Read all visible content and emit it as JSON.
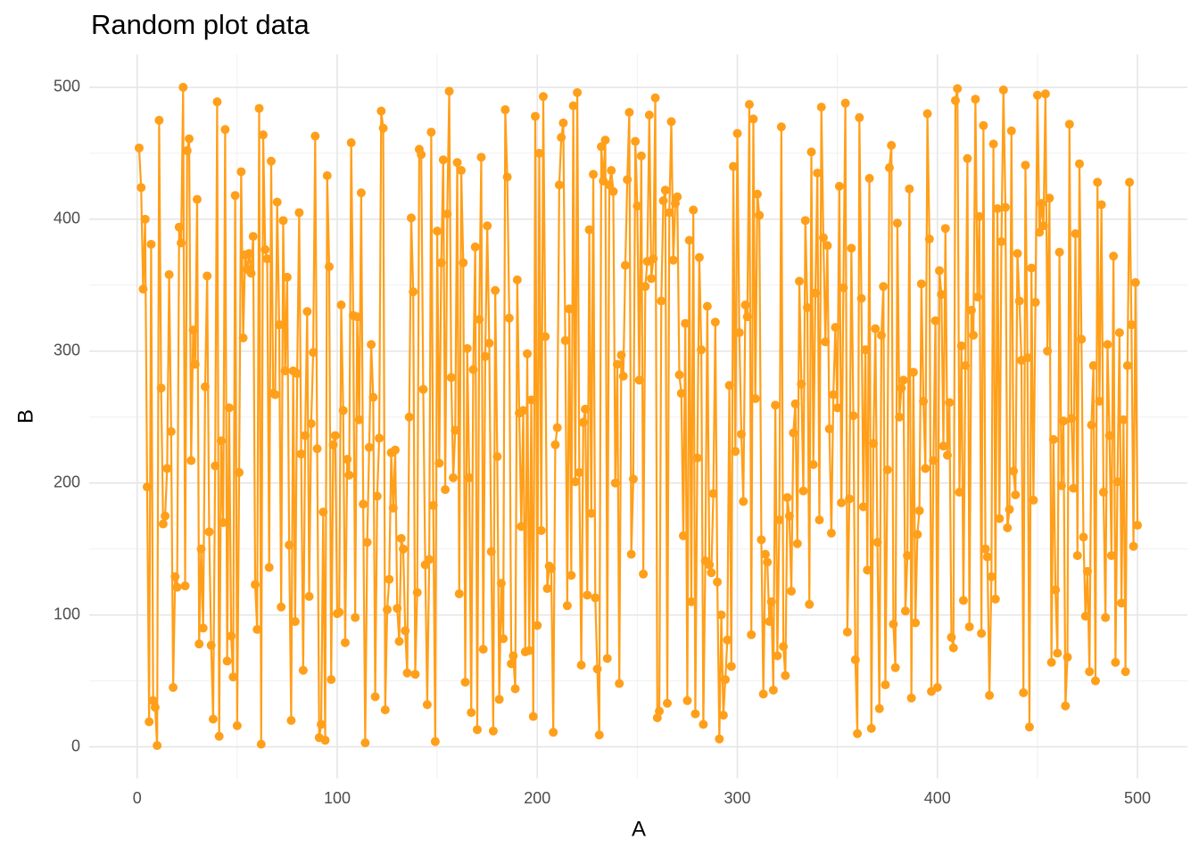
{
  "chart_data": {
    "type": "line",
    "title": "Random plot data",
    "x_label": "A",
    "y_label": "B",
    "color": "#ff9f1a",
    "grid": true,
    "xlim": [
      -23.95,
      524.95
    ],
    "ylim": [
      -23.95,
      524.95
    ],
    "xticks": [
      0,
      100,
      200,
      300,
      400,
      500
    ],
    "yticks": [
      0,
      100,
      200,
      300,
      400,
      500
    ],
    "xminorticks": [
      50,
      150,
      250,
      350,
      450
    ],
    "yminorticks": [
      50,
      150,
      250,
      350,
      450
    ],
    "x": [
      1,
      2,
      3,
      4,
      5,
      6,
      7,
      8,
      9,
      10,
      11,
      12,
      13,
      14,
      15,
      16,
      17,
      18,
      19,
      20,
      21,
      22,
      23,
      24,
      25,
      26,
      27,
      28,
      29,
      30,
      31,
      32,
      33,
      34,
      35,
      36,
      37,
      38,
      39,
      40,
      41,
      42,
      43,
      44,
      45,
      46,
      47,
      48,
      49,
      50,
      51,
      52,
      53,
      54,
      55,
      56,
      57,
      58,
      59,
      60,
      61,
      62,
      63,
      64,
      65,
      66,
      67,
      68,
      69,
      70,
      71,
      72,
      73,
      74,
      75,
      76,
      77,
      78,
      79,
      80,
      81,
      82,
      83,
      84,
      85,
      86,
      87,
      88,
      89,
      90,
      91,
      92,
      93,
      94,
      95,
      96,
      97,
      98,
      99,
      100,
      101,
      102,
      103,
      104,
      105,
      106,
      107,
      108,
      109,
      110,
      111,
      112,
      113,
      114,
      115,
      116,
      117,
      118,
      119,
      120,
      121,
      122,
      123,
      124,
      125,
      126,
      127,
      128,
      129,
      130,
      131,
      132,
      133,
      134,
      135,
      136,
      137,
      138,
      139,
      140,
      141,
      142,
      143,
      144,
      145,
      146,
      147,
      148,
      149,
      150,
      151,
      152,
      153,
      154,
      155,
      156,
      157,
      158,
      159,
      160,
      161,
      162,
      163,
      164,
      165,
      166,
      167,
      168,
      169,
      170,
      171,
      172,
      173,
      174,
      175,
      176,
      177,
      178,
      179,
      180,
      181,
      182,
      183,
      184,
      185,
      186,
      187,
      188,
      189,
      190,
      191,
      192,
      193,
      194,
      195,
      196,
      197,
      198,
      199,
      200,
      201,
      202,
      203,
      204,
      205,
      206,
      207,
      208,
      209,
      210,
      211,
      212,
      213,
      214,
      215,
      216,
      217,
      218,
      219,
      220,
      221,
      222,
      223,
      224,
      225,
      226,
      227,
      228,
      229,
      230,
      231,
      232,
      233,
      234,
      235,
      236,
      237,
      238,
      239,
      240,
      241,
      242,
      243,
      244,
      245,
      246,
      247,
      248,
      249,
      250,
      251,
      252,
      253,
      254,
      255,
      256,
      257,
      258,
      259,
      260,
      261,
      262,
      263,
      264,
      265,
      266,
      267,
      268,
      269,
      270,
      271,
      272,
      273,
      274,
      275,
      276,
      277,
      278,
      279,
      280,
      281,
      282,
      283,
      284,
      285,
      286,
      287,
      288,
      289,
      290,
      291,
      292,
      293,
      294,
      295,
      296,
      297,
      298,
      299,
      300,
      301,
      302,
      303,
      304,
      305,
      306,
      307,
      308,
      309,
      310,
      311,
      312,
      313,
      314,
      315,
      316,
      317,
      318,
      319,
      320,
      321,
      322,
      323,
      324,
      325,
      326,
      327,
      328,
      329,
      330,
      331,
      332,
      333,
      334,
      335,
      336,
      337,
      338,
      339,
      340,
      341,
      342,
      343,
      344,
      345,
      346,
      347,
      348,
      349,
      350,
      351,
      352,
      353,
      354,
      355,
      356,
      357,
      358,
      359,
      360,
      361,
      362,
      363,
      364,
      365,
      366,
      367,
      368,
      369,
      370,
      371,
      372,
      373,
      374,
      375,
      376,
      377,
      378,
      379,
      380,
      381,
      382,
      383,
      384,
      385,
      386,
      387,
      388,
      389,
      390,
      391,
      392,
      393,
      394,
      395,
      396,
      397,
      398,
      399,
      400,
      401,
      402,
      403,
      404,
      405,
      406,
      407,
      408,
      409,
      410,
      411,
      412,
      413,
      414,
      415,
      416,
      417,
      418,
      419,
      420,
      421,
      422,
      423,
      424,
      425,
      426,
      427,
      428,
      429,
      430,
      431,
      432,
      433,
      434,
      435,
      436,
      437,
      438,
      439,
      440,
      441,
      442,
      443,
      444,
      445,
      446,
      447,
      448,
      449,
      450,
      451,
      452,
      453,
      454,
      455,
      456,
      457,
      458,
      459,
      460,
      461,
      462,
      463,
      464,
      465,
      466,
      467,
      468,
      469,
      470,
      471,
      472,
      473,
      474,
      475,
      476,
      477,
      478,
      479,
      480,
      481,
      482,
      483,
      484,
      485,
      486,
      487,
      488,
      489,
      490,
      491,
      492,
      493,
      494,
      495,
      496,
      497,
      498,
      499,
      500
    ],
    "values": [
      454,
      424,
      347,
      400,
      197,
      19,
      381,
      35,
      30,
      1,
      475,
      272,
      169,
      175,
      211,
      358,
      239,
      45,
      129,
      121,
      394,
      382,
      500,
      122,
      452,
      461,
      217,
      316,
      290,
      415,
      78,
      150,
      90,
      273,
      357,
      163,
      77,
      21,
      213,
      489,
      8,
      232,
      170,
      468,
      65,
      257,
      84,
      53,
      418,
      16,
      208,
      436,
      310,
      373,
      362,
      374,
      359,
      387,
      123,
      89,
      484,
      2,
      464,
      377,
      370,
      136,
      444,
      268,
      267,
      413,
      320,
      106,
      399,
      285,
      356,
      153,
      20,
      285,
      95,
      283,
      405,
      222,
      58,
      236,
      330,
      114,
      245,
      299,
      463,
      226,
      7,
      17,
      178,
      5,
      433,
      364,
      51,
      229,
      236,
      101,
      102,
      335,
      255,
      79,
      218,
      206,
      458,
      327,
      98,
      326,
      248,
      420,
      184,
      3,
      155,
      227,
      305,
      265,
      38,
      190,
      234,
      482,
      469,
      28,
      104,
      127,
      223,
      181,
      225,
      105,
      80,
      158,
      150,
      88,
      56,
      250,
      401,
      345,
      55,
      117,
      453,
      449,
      271,
      138,
      32,
      142,
      466,
      183,
      4,
      391,
      215,
      367,
      445,
      195,
      404,
      497,
      280,
      204,
      240,
      443,
      116,
      437,
      367,
      49,
      302,
      204,
      26,
      286,
      379,
      13,
      324,
      447,
      74,
      296,
      395,
      306,
      148,
      12,
      346,
      220,
      36,
      124,
      82,
      483,
      432,
      325,
      63,
      69,
      44,
      354,
      253,
      167,
      255,
      72,
      298,
      73,
      263,
      23,
      478,
      92,
      450,
      164,
      493,
      311,
      120,
      137,
      135,
      11,
      229,
      242,
      426,
      462,
      473,
      308,
      107,
      332,
      130,
      486,
      201,
      496,
      208,
      62,
      246,
      256,
      115,
      392,
      177,
      434,
      113,
      59,
      9,
      455,
      429,
      460,
      67,
      426,
      437,
      421,
      200,
      290,
      48,
      297,
      281,
      365,
      430,
      481,
      146,
      203,
      459,
      410,
      278,
      448,
      131,
      349,
      368,
      479,
      355,
      370,
      492,
      22,
      27,
      338,
      414,
      422,
      33,
      405,
      474,
      369,
      412,
      417,
      282,
      268,
      160,
      321,
      35,
      384,
      110,
      407,
      25,
      219,
      371,
      301,
      17,
      141,
      334,
      138,
      132,
      192,
      322,
      125,
      6,
      100,
      24,
      51,
      81,
      274,
      61,
      440,
      224,
      465,
      314,
      237,
      186,
      335,
      326,
      487,
      85,
      476,
      264,
      419,
      403,
      157,
      40,
      146,
      140,
      95,
      110,
      43,
      259,
      69,
      172,
      470,
      76,
      54,
      189,
      175,
      118,
      238,
      260,
      154,
      353,
      275,
      194,
      399,
      333,
      108,
      451,
      214,
      344,
      435,
      172,
      485,
      386,
      307,
      380,
      241,
      162,
      267,
      318,
      257,
      425,
      185,
      348,
      488,
      87,
      188,
      378,
      251,
      66,
      10,
      477,
      340,
      182,
      301,
      134,
      431,
      14,
      230,
      317,
      155,
      29,
      312,
      349,
      47,
      210,
      439,
      456,
      93,
      60,
      397,
      250,
      272,
      278,
      103,
      145,
      423,
      37,
      284,
      94,
      161,
      179,
      351,
      262,
      211,
      480,
      385,
      42,
      217,
      323,
      45,
      361,
      343,
      228,
      393,
      221,
      261,
      83,
      75,
      490,
      499,
      193,
      304,
      111,
      289,
      446,
      91,
      331,
      312,
      491,
      341,
      402,
      86,
      471,
      150,
      144,
      39,
      129,
      457,
      112,
      408,
      173,
      383,
      498,
      409,
      166,
      180,
      467,
      209,
      191,
      374,
      338,
      293,
      41,
      441,
      295,
      15,
      363,
      187,
      337,
      494,
      390,
      412,
      395,
      495,
      300,
      416,
      64,
      233,
      119,
      71,
      375,
      198,
      247,
      31,
      68,
      472,
      249,
      196,
      389,
      145,
      442,
      309,
      159,
      99,
      133,
      57,
      244,
      289,
      50,
      428,
      262,
      411,
      193,
      98,
      305,
      236,
      145,
      372,
      64,
      201,
      314,
      109,
      248,
      57,
      289,
      428,
      320,
      152,
      352,
      168
    ]
  }
}
